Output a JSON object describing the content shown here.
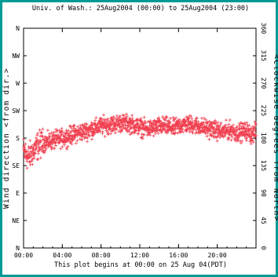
{
  "colors": {
    "background_border": "#009a95",
    "data_points": "#f04050",
    "axes": "#000000"
  },
  "chart_data": {
    "type": "scatter",
    "title": "Univ. of Wash.:  25Aug2004 (00:00) to 25Aug2004 (23:00)",
    "footer": "This plot begins at 00:00 on 25 Aug 04(PDT)",
    "ylabel_left": "Wind direction <from dir.>",
    "ylabel_right": "<Clockwise degrees from North>",
    "x_ticks": [
      "00:00",
      "04:00",
      "08:00",
      "12:00",
      "16:00",
      "20:00"
    ],
    "x_tick_hours": [
      0,
      4,
      8,
      12,
      16,
      20
    ],
    "xlim_hours": [
      0,
      24
    ],
    "y_ticks_left": [
      "N",
      "NE",
      "E",
      "SE",
      "S",
      "SW",
      "W",
      "NW",
      "N"
    ],
    "y_ticks_right": [
      "0",
      "45",
      "90",
      "135",
      "180",
      "225",
      "270",
      "315",
      "360"
    ],
    "y_tick_values_deg": [
      0,
      45,
      90,
      135,
      180,
      225,
      270,
      315,
      360
    ],
    "ylim_deg": [
      0,
      360
    ],
    "marker": "+",
    "series": [
      {
        "x_hours": [
          0.0,
          0.5,
          1.0,
          1.5,
          2.0,
          2.5,
          3.0,
          3.5,
          4.0,
          4.5,
          5.0,
          5.5,
          6.0,
          6.5,
          7.0,
          7.5,
          8.0,
          8.5,
          9.0,
          9.5,
          10.0,
          10.5,
          11.0,
          11.5,
          12.0,
          12.5,
          13.0,
          13.5,
          14.0,
          14.5,
          15.0,
          15.5,
          16.0,
          16.5,
          17.0,
          17.5,
          18.0,
          18.5,
          19.0,
          19.5,
          20.0,
          20.5,
          21.0,
          21.5,
          22.0,
          22.5,
          23.0,
          23.5,
          24.0
        ],
        "direction_deg": [
          160,
          148,
          158,
          168,
          172,
          174,
          176,
          178,
          180,
          182,
          185,
          188,
          190,
          192,
          195,
          197,
          200,
          201,
          202,
          203,
          205,
          204,
          203,
          201,
          198,
          196,
          195,
          197,
          199,
          200,
          198,
          196,
          200,
          202,
          203,
          202,
          200,
          198,
          196,
          195,
          192,
          190,
          192,
          193,
          188,
          190,
          192,
          186,
          190
        ]
      }
    ]
  }
}
